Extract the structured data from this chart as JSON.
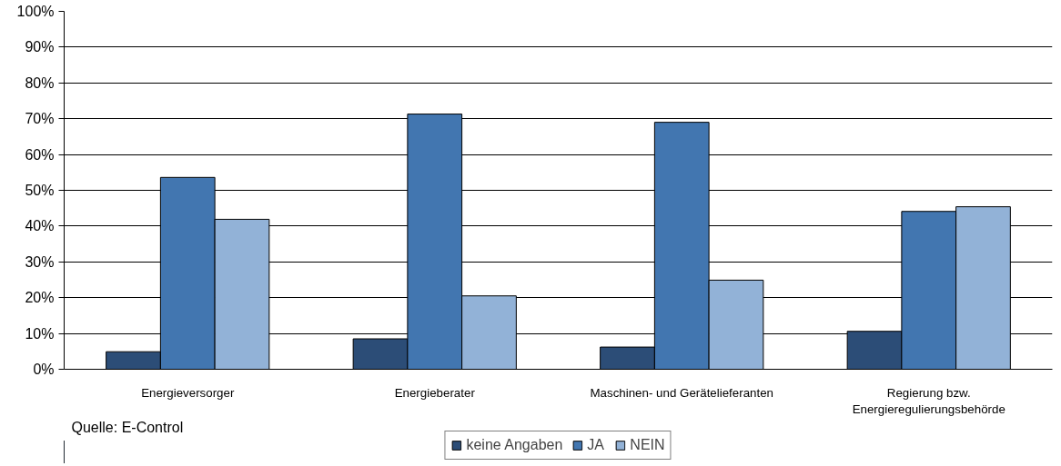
{
  "chart_data": {
    "type": "bar",
    "categories": [
      "Energieversorger",
      "Energieberater",
      "Maschinen- und Gerätelieferanten",
      "Regierung bzw.\nEnergieregulierungsbehörde"
    ],
    "series": [
      {
        "name": "keine Angaben",
        "color": "#2c4d77",
        "values": [
          4.9,
          8.5,
          6.2,
          10.6
        ]
      },
      {
        "name": "JA",
        "color": "#4276b0",
        "values": [
          53.6,
          71.3,
          69.0,
          44.1
        ]
      },
      {
        "name": "NEIN",
        "color": "#92b2d7",
        "values": [
          41.9,
          20.5,
          24.9,
          45.4
        ]
      }
    ],
    "ylim": [
      0,
      100
    ],
    "yticks": [
      {
        "value": 0,
        "label": "0%"
      },
      {
        "value": 10,
        "label": "10%"
      },
      {
        "value": 20,
        "label": "20%"
      },
      {
        "value": 30,
        "label": "30%"
      },
      {
        "value": 40,
        "label": "40%"
      },
      {
        "value": 50,
        "label": "50%"
      },
      {
        "value": 60,
        "label": "60%"
      },
      {
        "value": 70,
        "label": "70%"
      },
      {
        "value": 80,
        "label": "80%"
      },
      {
        "value": 90,
        "label": "90%"
      },
      {
        "value": 100,
        "label": "100%"
      }
    ],
    "grid": "y",
    "legend": "bottom",
    "annotations": [
      "Quelle: E-Control"
    ]
  }
}
